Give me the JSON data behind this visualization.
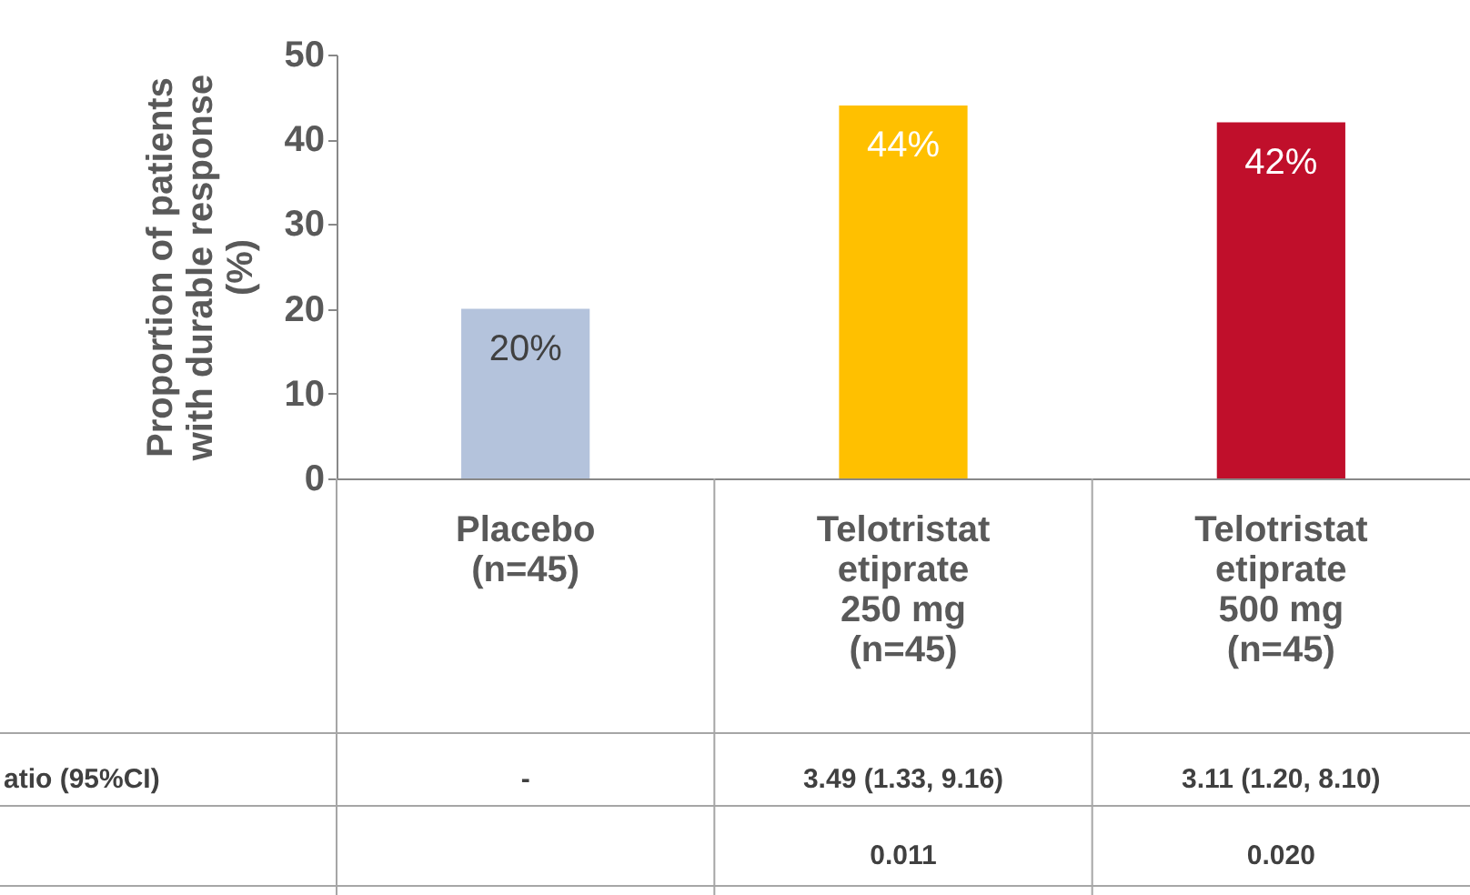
{
  "chart_data": {
    "type": "bar",
    "categories": [
      "Placebo\n(n=45)",
      "Telotristat\netiprate\n250 mg\n(n=45)",
      "Telotristat\netiprate\n500 mg\n(n=45)"
    ],
    "values": [
      20,
      44,
      42
    ],
    "colors": [
      "#b4c3dc",
      "#ffc000",
      "#c00f2b"
    ],
    "value_labels": [
      "20%",
      "44%",
      "42%"
    ],
    "ylabel": "Proportion of patients\nwith durable response\n(%)",
    "ylim": [
      0,
      50
    ],
    "yticks": [
      0,
      10,
      20,
      30,
      40,
      50
    ],
    "grid": false,
    "annotations": [
      "atio (95%CI)",
      "-",
      "3.49 (1.33, 9.16)",
      "3.11 (1.20, 8.10)",
      "0.011",
      "0.020"
    ]
  }
}
